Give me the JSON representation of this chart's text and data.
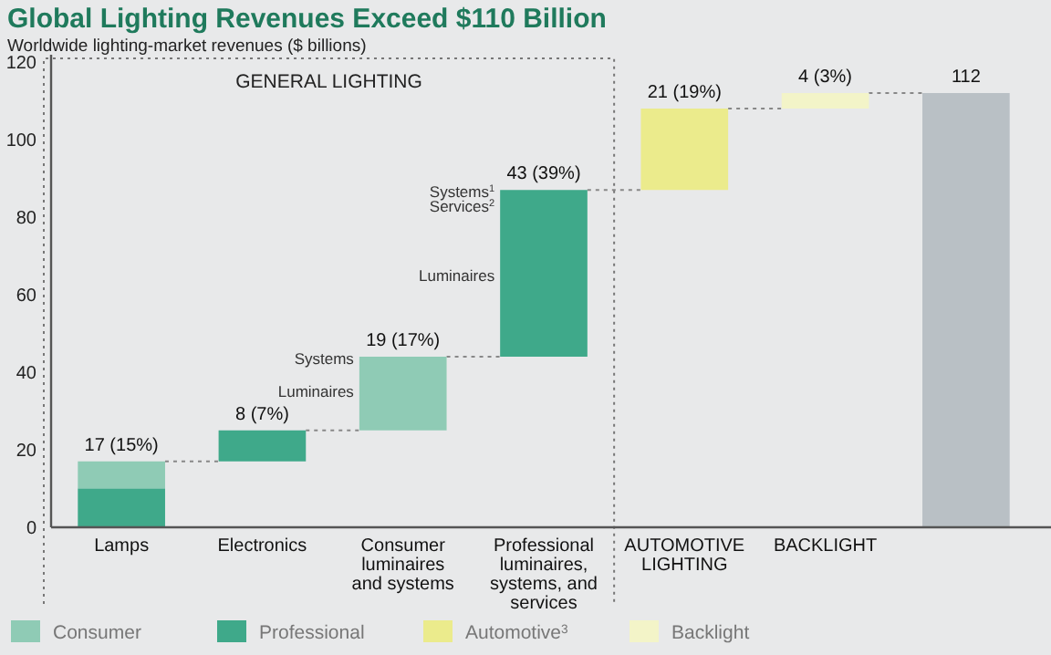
{
  "chart_data": {
    "type": "bar",
    "title": "Global Lighting Revenues Exceed $110 Billion",
    "subtitle": "Worldwide lighting-market revenues ($ billions)",
    "categories": [
      "Lamps",
      "Electronics",
      "Consumer luminaires and systems",
      "Professional luminaires, systems, and services",
      "AUTOMOTIVE LIGHTING",
      "BACKLIGHT",
      null
    ],
    "series": [
      {
        "name": "Consumer",
        "color": "#8fcbb5",
        "values": [
          7,
          null,
          19,
          null,
          null,
          null,
          null
        ],
        "base": [
          10,
          null,
          25,
          null,
          null,
          null,
          null
        ]
      },
      {
        "name": "Professional",
        "color": "#3fa98a",
        "values": [
          10,
          8,
          null,
          43,
          null,
          null,
          null
        ],
        "base": [
          0,
          17,
          null,
          44,
          null,
          null,
          null
        ]
      },
      {
        "name": "Automotive$^{3}$",
        "color": "#ebeb8c",
        "values": [
          null,
          null,
          null,
          null,
          21,
          null,
          null
        ],
        "base": [
          null,
          null,
          null,
          null,
          87,
          null,
          null
        ]
      },
      {
        "name": "Backlight",
        "color": "#f3f4c8",
        "values": [
          null,
          null,
          null,
          null,
          null,
          4,
          null
        ],
        "base": [
          null,
          null,
          null,
          null,
          null,
          108,
          null
        ]
      },
      {
        "color": "#b9c0c5",
        "values": [
          null,
          null,
          null,
          null,
          null,
          null,
          112
        ]
      }
    ],
    "totals": [
      "17 (15%)",
      "8 (7%)",
      "19 (17%)",
      "43 (39%)",
      "21 (19%)",
      "4 (3%)",
      "112"
    ],
    "ylim": [
      0,
      120
    ],
    "yticks": [
      0,
      20,
      40,
      60,
      80,
      100,
      120
    ],
    "grid": false,
    "legend": "bottom",
    "annotations": [
      "GENERAL LIGHTING",
      "Systems",
      "Luminaires",
      "Systems$^{1}$",
      "Services$^{2}$",
      "Luminaires"
    ]
  }
}
